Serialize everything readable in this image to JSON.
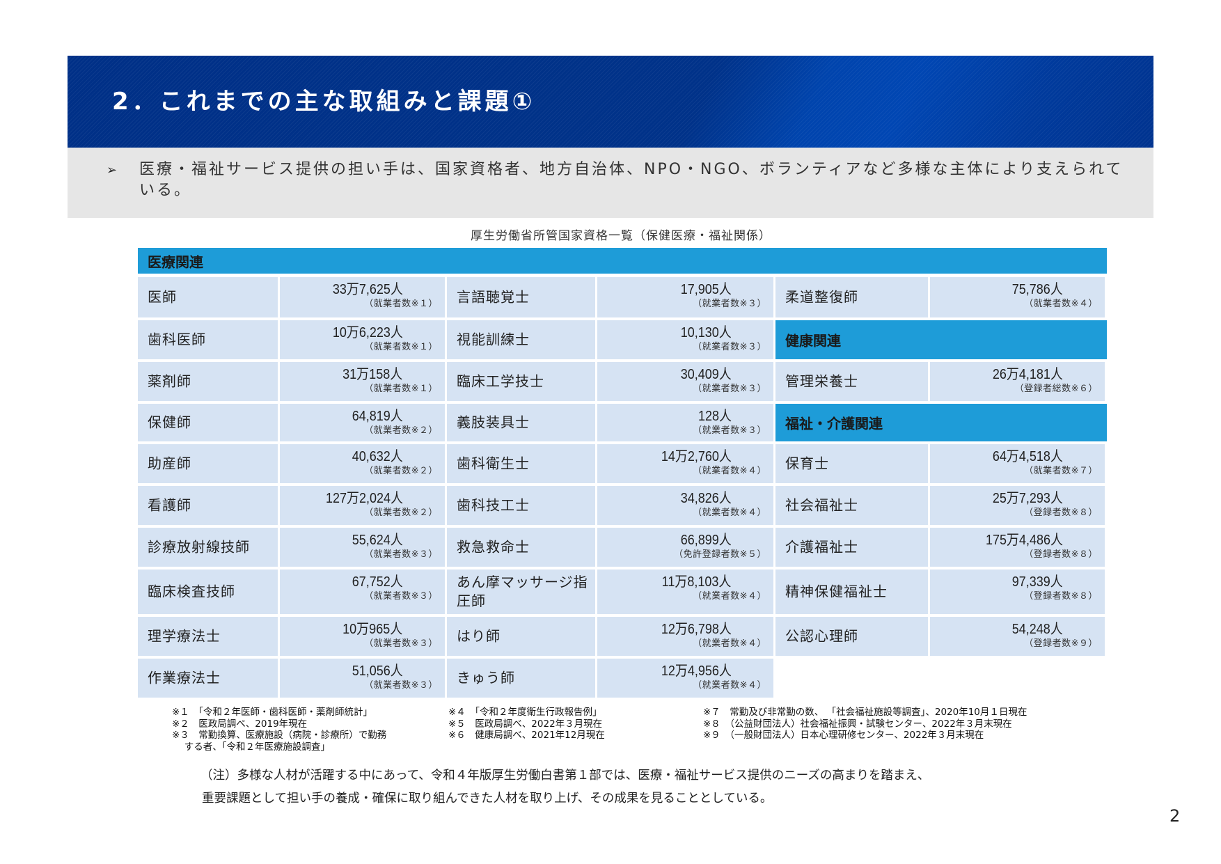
{
  "header": {
    "title": "2．これまでの主な取組みと課題①"
  },
  "summary": {
    "bullet_icon": "➢",
    "text": "医療・福祉サービス提供の担い手は、国家資格者、地方自治体、NPO・NGO、ボランティアなど多様な主体により支えられている。"
  },
  "table": {
    "caption": "厚生労働省所管国家資格一覧（保健医療・福祉関係）",
    "sections": {
      "medical": "医療関連",
      "health": "健康関連",
      "welfare": "福祉・介護関連"
    },
    "col1": [
      {
        "name": "医師",
        "value": "33万7,625人",
        "note": "（就業者数※１）"
      },
      {
        "name": "歯科医師",
        "value": "10万6,223人",
        "note": "（就業者数※１）"
      },
      {
        "name": "薬剤師",
        "value": "31万158人",
        "note": "（就業者数※１）"
      },
      {
        "name": "保健師",
        "value": "64,819人",
        "note": "（就業者数※２）"
      },
      {
        "name": "助産師",
        "value": "40,632人",
        "note": "（就業者数※２）"
      },
      {
        "name": "看護師",
        "value": "127万2,024人",
        "note": "（就業者数※２）"
      },
      {
        "name": "診療放射線技師",
        "value": "55,624人",
        "note": "（就業者数※３）"
      },
      {
        "name": "臨床検査技師",
        "value": "67,752人",
        "note": "（就業者数※３）"
      },
      {
        "name": "理学療法士",
        "value": "10万965人",
        "note": "（就業者数※３）"
      },
      {
        "name": "作業療法士",
        "value": "51,056人",
        "note": "（就業者数※３）"
      }
    ],
    "col2": [
      {
        "name": "言語聴覚士",
        "value": "17,905人",
        "note": "（就業者数※３）"
      },
      {
        "name": "視能訓練士",
        "value": "10,130人",
        "note": "（就業者数※３）"
      },
      {
        "name": "臨床工学技士",
        "value": "30,409人",
        "note": "（就業者数※３）"
      },
      {
        "name": "義肢装具士",
        "value": "128人",
        "note": "（就業者数※３）"
      },
      {
        "name": "歯科衛生士",
        "value": "14万2,760人",
        "note": "（就業者数※４）"
      },
      {
        "name": "歯科技工士",
        "value": "34,826人",
        "note": "（就業者数※４）"
      },
      {
        "name": "救急救命士",
        "value": "66,899人",
        "note": "（免許登録者数※５）"
      },
      {
        "name": "あん摩マッサージ指圧師",
        "value": "11万8,103人",
        "note": "（就業者数※４）"
      },
      {
        "name": "はり師",
        "value": "12万6,798人",
        "note": "（就業者数※４）"
      },
      {
        "name": "きゅう師",
        "value": "12万4,956人",
        "note": "（就業者数※４）"
      }
    ],
    "col3": {
      "judo": {
        "name": "柔道整復師",
        "value": "75,786人",
        "note": "（就業者数※４）"
      },
      "nutrition": {
        "name": "管理栄養士",
        "value": "26万4,181人",
        "note": "（登録者総数※６）"
      },
      "welfare_rows": [
        {
          "name": "保育士",
          "value": "64万4,518人",
          "note": "（就業者数※７）"
        },
        {
          "name": "社会福祉士",
          "value": "25万7,293人",
          "note": "（登録者数※８）"
        },
        {
          "name": "介護福祉士",
          "value": "175万4,486人",
          "note": "（登録者数※８）"
        },
        {
          "name": "精神保健福祉士",
          "value": "97,339人",
          "note": "（登録者数※８）"
        },
        {
          "name": "公認心理師",
          "value": "54,248人",
          "note": "（登録者数※９）"
        }
      ]
    }
  },
  "footnotes": {
    "col1": [
      "※１　「令和２年医師・歯科医師・薬剤師統計」",
      "※２　医政局調べ、2019年現在",
      "※３　常勤換算、医療施設（病院・診療所）で勤務",
      "　 する者、「令和２年医療施設調査」"
    ],
    "col2": [
      "※４　「令和２年度衛生行政報告例」",
      "※５　医政局調べ、2022年３月現在",
      "※６　健康局調べ、2021年12月現在"
    ],
    "col3": [
      "※７　常勤及び非常勤の数、 「社会福祉施設等調査」、2020年10月１日現在",
      "※８　（公益財団法人）社会福祉振興・試験センター、2022年３月末現在",
      "※９　（一般財団法人）日本心理研修センター、2022年３月末現在"
    ]
  },
  "note": {
    "line1": "（注）多様な人材が活躍する中にあって、令和４年版厚生労働白書第１部では、医療・福祉サービス提供のニーズの高まりを踏まえ、",
    "line2": "重要課題として担い手の養成・確保に取り組んできた人材を取り上げ、その成果を見ることとしている。"
  },
  "page_number": "2"
}
